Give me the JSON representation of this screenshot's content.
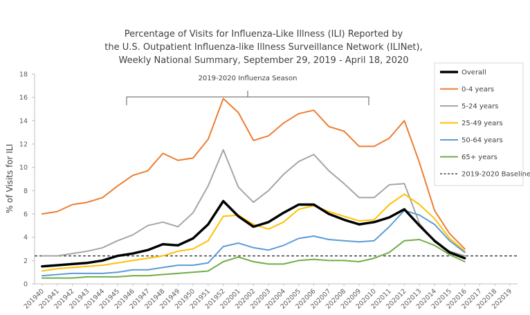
{
  "chart_data": {
    "type": "line",
    "title": [
      "Percentage of Visits for Influenza-Like Illness (ILI) Reported by",
      "the U.S. Outpatient Influenza-like Illness Surveillance Network (ILINet),",
      "Weekly National Summary, September 29, 2019 - April 18, 2020"
    ],
    "ylabel": "% of Visits for ILI",
    "xlabel": "",
    "ylim": [
      0,
      18
    ],
    "yticks": [
      "0",
      "2",
      "4",
      "6",
      "8",
      "10",
      "12",
      "14",
      "16",
      "18"
    ],
    "categories": [
      "201940",
      "201941",
      "201942",
      "201943",
      "201944",
      "201945",
      "201946",
      "201947",
      "201948",
      "201949",
      "201950",
      "201951",
      "201952",
      "202001",
      "202002",
      "202003",
      "202004",
      "202005",
      "202006",
      "202007",
      "202008",
      "202009",
      "202010",
      "202011",
      "202012",
      "202013",
      "202014",
      "202015",
      "202016",
      "202017",
      "202018",
      "202019"
    ],
    "annotation": "2019-2020 Influenza Season",
    "series": [
      {
        "name": "Overall",
        "color": "#000000",
        "values": [
          1.5,
          1.6,
          1.7,
          1.8,
          2.0,
          2.4,
          2.6,
          2.9,
          3.4,
          3.3,
          3.9,
          5.1,
          7.1,
          5.8,
          4.9,
          5.3,
          6.1,
          6.8,
          6.8,
          6.0,
          5.5,
          5.1,
          5.3,
          5.7,
          6.4,
          5.0,
          3.7,
          2.7,
          2.2,
          null,
          null,
          null
        ]
      },
      {
        "name": "0-4 years",
        "color": "#ED7D31",
        "values": [
          6.0,
          6.2,
          6.8,
          7.0,
          7.4,
          8.4,
          9.3,
          9.7,
          11.2,
          10.6,
          10.8,
          12.4,
          15.9,
          14.7,
          12.3,
          12.7,
          13.8,
          14.6,
          14.9,
          13.5,
          13.1,
          11.8,
          11.8,
          12.5,
          14.0,
          10.4,
          6.3,
          4.3,
          3.0,
          null,
          null,
          null
        ]
      },
      {
        "name": "5-24 years",
        "color": "#A5A5A5",
        "values": [
          2.4,
          2.4,
          2.6,
          2.8,
          3.1,
          3.7,
          4.2,
          5.0,
          5.3,
          4.9,
          6.1,
          8.4,
          11.5,
          8.3,
          7.0,
          8.0,
          9.4,
          10.5,
          11.1,
          9.7,
          8.6,
          7.4,
          7.4,
          8.5,
          8.6,
          5.2,
          3.6,
          2.8,
          2.4,
          null,
          null,
          null
        ]
      },
      {
        "name": "25-49 years",
        "color": "#FFC000",
        "values": [
          1.1,
          1.3,
          1.4,
          1.5,
          1.6,
          1.8,
          2.0,
          2.2,
          2.4,
          2.8,
          3.0,
          3.7,
          5.8,
          5.9,
          5.1,
          4.7,
          5.3,
          6.4,
          6.7,
          6.2,
          5.8,
          5.4,
          5.5,
          6.8,
          7.7,
          6.8,
          5.6,
          3.9,
          2.8,
          null,
          null,
          null
        ]
      },
      {
        "name": "50-64 years",
        "color": "#5B9BD5",
        "values": [
          0.7,
          0.8,
          0.9,
          0.9,
          0.9,
          1.0,
          1.2,
          1.2,
          1.4,
          1.6,
          1.6,
          1.8,
          3.2,
          3.5,
          3.1,
          2.9,
          3.3,
          3.9,
          4.1,
          3.8,
          3.7,
          3.6,
          3.7,
          4.9,
          6.3,
          5.9,
          5.1,
          3.7,
          2.7,
          null,
          null,
          null
        ]
      },
      {
        "name": "65+ years",
        "color": "#70AD47",
        "values": [
          0.5,
          0.5,
          0.5,
          0.6,
          0.6,
          0.6,
          0.7,
          0.7,
          0.8,
          0.9,
          1.0,
          1.1,
          1.9,
          2.3,
          1.9,
          1.7,
          1.7,
          2.0,
          2.1,
          2.0,
          2.0,
          1.9,
          2.2,
          2.7,
          3.7,
          3.8,
          3.3,
          2.5,
          1.9,
          null,
          null,
          null
        ]
      }
    ],
    "baseline": {
      "name": "2019-2020 Baseline",
      "value": 2.4,
      "color": "#404040"
    },
    "legend_position": "right"
  }
}
